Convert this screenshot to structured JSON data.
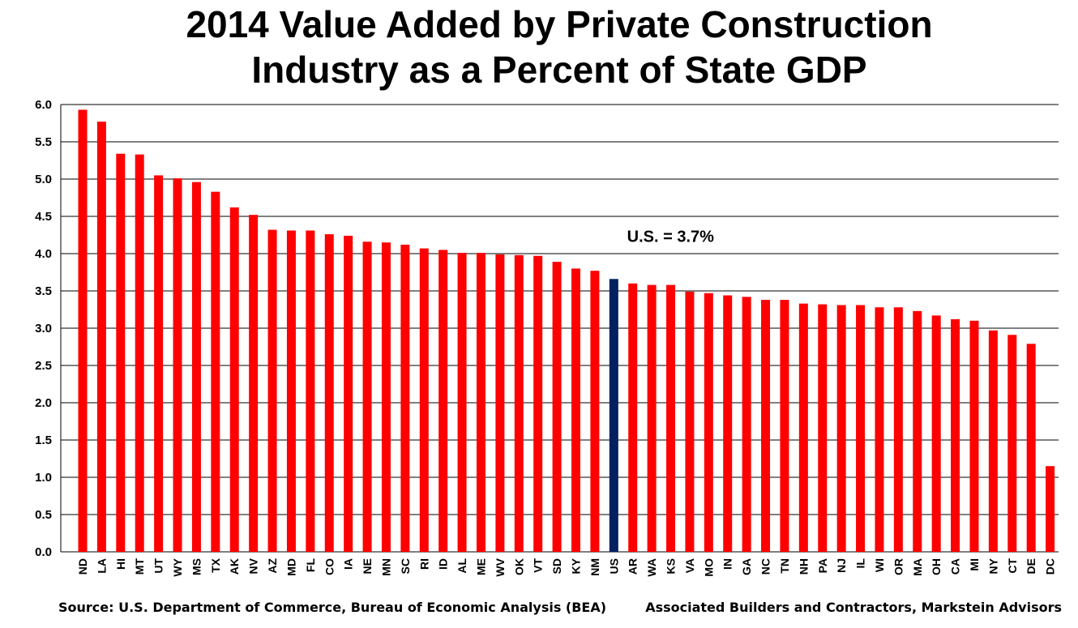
{
  "chart_data": {
    "type": "bar",
    "title": [
      "2014 Value Added by Private Construction",
      "Industry as a Percent of State GDP"
    ],
    "xlabel": "",
    "ylabel": "",
    "ylim": [
      0,
      6
    ],
    "yticks": [
      "0.0",
      "0.5",
      "1.0",
      "1.5",
      "2.0",
      "2.5",
      "3.0",
      "3.5",
      "4.0",
      "4.5",
      "5.0",
      "5.5",
      "6.0"
    ],
    "grid": true,
    "categories": [
      "ND",
      "LA",
      "HI",
      "MT",
      "UT",
      "WY",
      "MS",
      "TX",
      "AK",
      "NV",
      "AZ",
      "MD",
      "FL",
      "CO",
      "IA",
      "NE",
      "MN",
      "SC",
      "RI",
      "ID",
      "AL",
      "ME",
      "WV",
      "OK",
      "VT",
      "SD",
      "KY",
      "NM",
      "US",
      "AR",
      "WA",
      "KS",
      "VA",
      "MO",
      "IN",
      "GA",
      "NC",
      "TN",
      "NH",
      "PA",
      "NJ",
      "IL",
      "WI",
      "OR",
      "MA",
      "OH",
      "CA",
      "MI",
      "NY",
      "CT",
      "DE",
      "DC"
    ],
    "values": [
      5.93,
      5.77,
      5.34,
      5.33,
      5.05,
      5.01,
      4.96,
      4.83,
      4.62,
      4.52,
      4.32,
      4.31,
      4.31,
      4.26,
      4.24,
      4.16,
      4.15,
      4.12,
      4.07,
      4.05,
      4.01,
      4.01,
      3.99,
      3.98,
      3.97,
      3.89,
      3.8,
      3.77,
      3.66,
      3.6,
      3.58,
      3.58,
      3.49,
      3.47,
      3.44,
      3.42,
      3.38,
      3.38,
      3.33,
      3.32,
      3.31,
      3.31,
      3.28,
      3.28,
      3.23,
      3.17,
      3.12,
      3.1,
      2.97,
      2.91,
      2.79,
      1.15
    ],
    "highlight_category": "US",
    "colors": {
      "bar": "#ff0000",
      "highlight": "#002060",
      "grid": "#000000"
    },
    "annotation": "U.S. = 3.7%"
  },
  "footer": {
    "source": "Source: U.S. Department of Commerce, Bureau of Economic Analysis (BEA)",
    "credit": "Associated Builders and Contractors, Markstein Advisors"
  }
}
